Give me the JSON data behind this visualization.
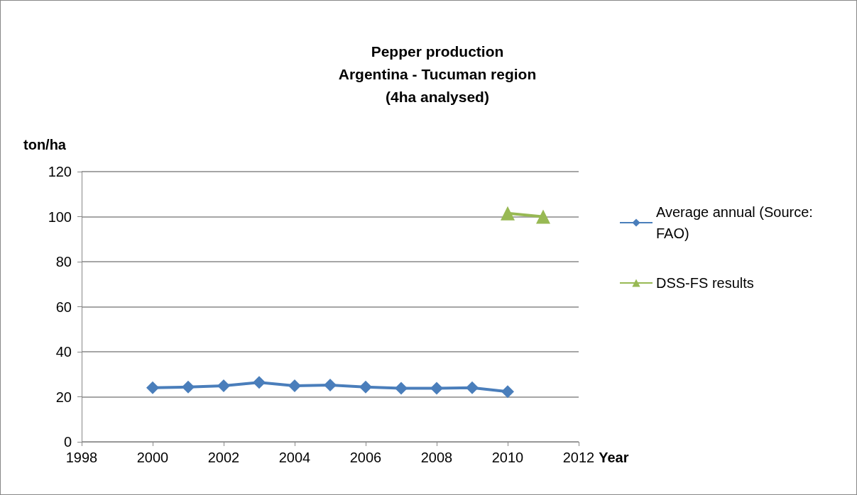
{
  "chart_data": {
    "type": "line",
    "title": "Pepper production\nArgentina - Tucuman region\n(4ha analysed)",
    "xlabel": "Year",
    "ylabel": "ton/ha",
    "series": [
      {
        "name": "Average annual (Source: FAO)",
        "color": "#4a7ebb",
        "marker": "diamond",
        "x": [
          2000,
          2001,
          2002,
          2003,
          2004,
          2005,
          2006,
          2007,
          2008,
          2009,
          2010
        ],
        "values": [
          24,
          24.3,
          24.9,
          26.4,
          24.9,
          25.2,
          24.3,
          23.8,
          23.8,
          24,
          22.3
        ]
      },
      {
        "name": "DSS-FS results",
        "color": "#98b954",
        "marker": "triangle",
        "x": [
          2010,
          2011
        ],
        "values": [
          101.5,
          100
        ]
      }
    ],
    "xlim": [
      1998,
      2012
    ],
    "xticks": [
      1998,
      2000,
      2002,
      2004,
      2006,
      2008,
      2010,
      2012
    ],
    "ylim": [
      0,
      120
    ],
    "yticks": [
      0,
      20,
      40,
      60,
      80,
      100,
      120
    ],
    "grid": "y",
    "legend": "right"
  }
}
